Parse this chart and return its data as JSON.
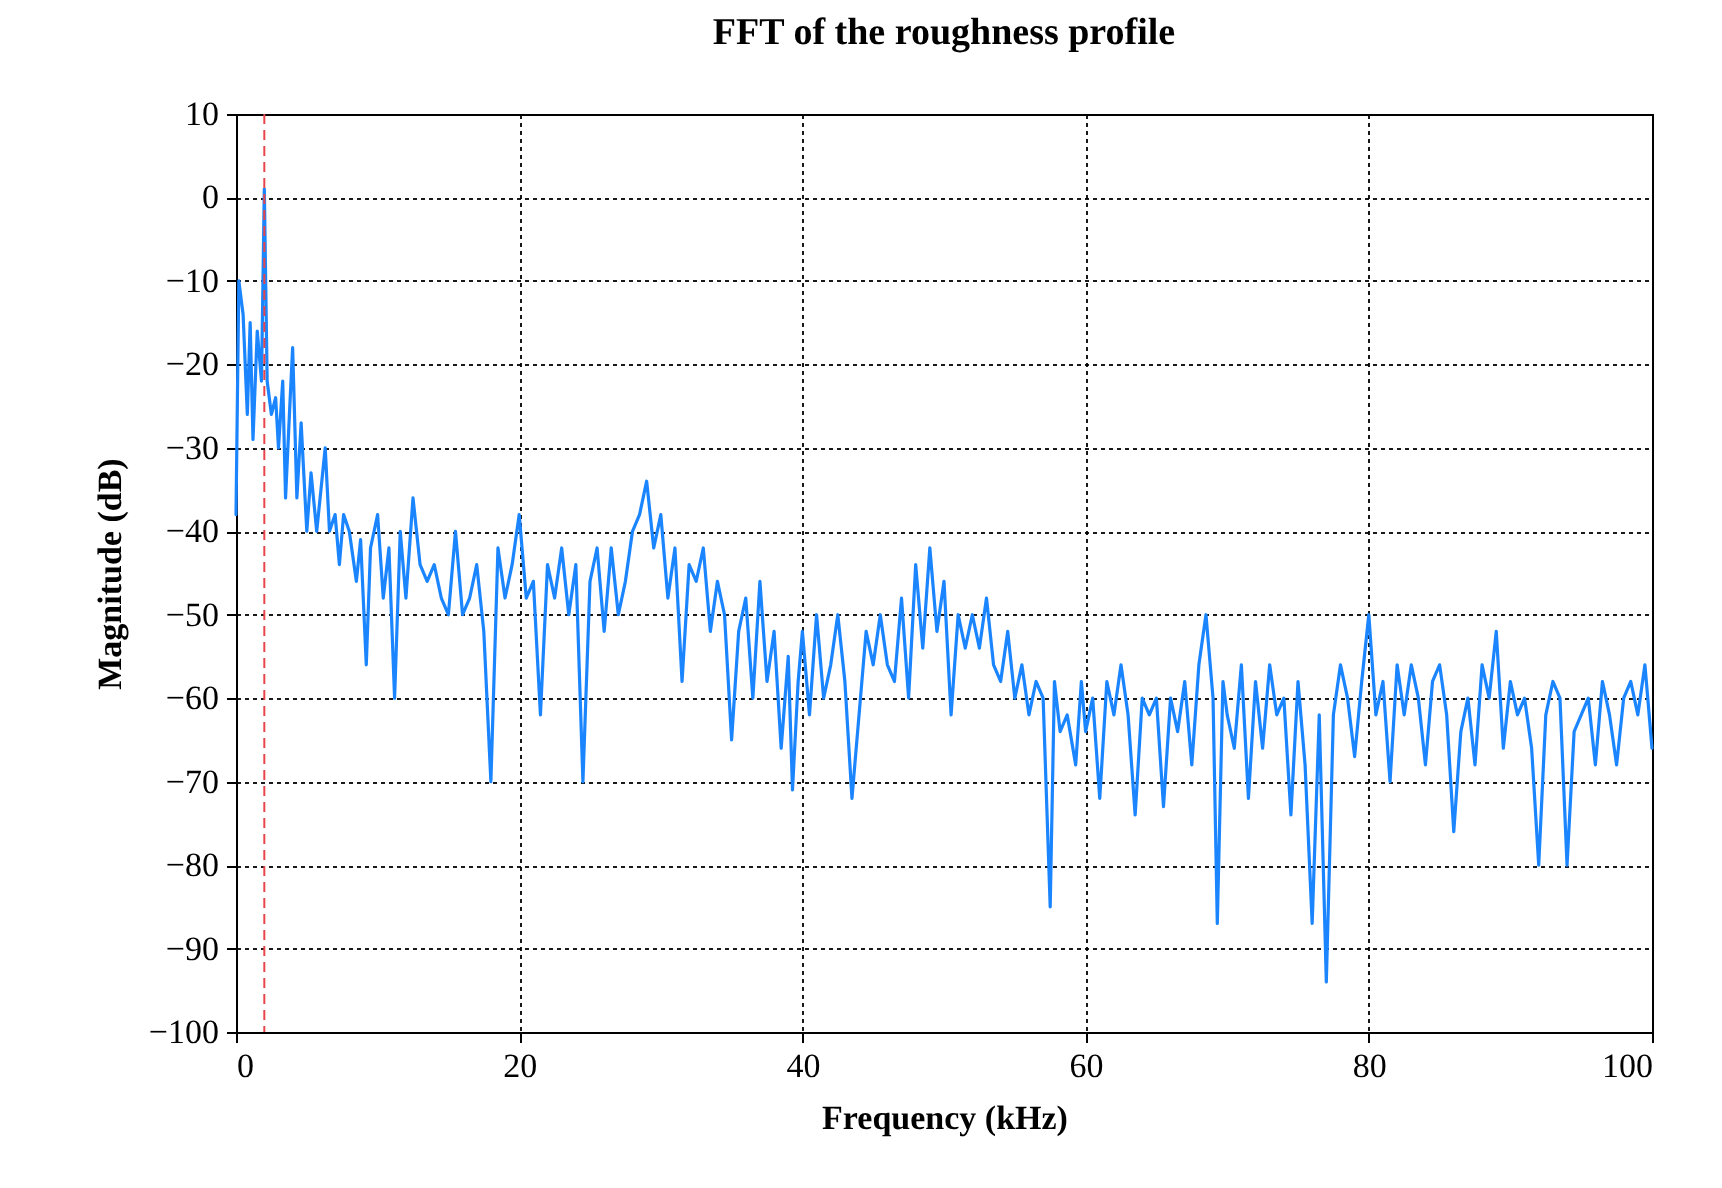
{
  "chart_data": {
    "type": "line",
    "title": "FFT of the roughness profile",
    "xlabel": "Frequency (kHz)",
    "ylabel": "Magnitude (dB)",
    "xlim": [
      0,
      100
    ],
    "xticks": [
      0,
      20,
      40,
      60,
      80,
      100
    ],
    "ylim": [
      -100,
      10
    ],
    "yticks": [
      -100,
      -90,
      -80,
      -70,
      -60,
      -50,
      -40,
      -30,
      -20,
      -10,
      0,
      10
    ],
    "grid": true,
    "line_style": "solid",
    "marker": "none",
    "ref_lines": [
      {
        "axis": "x",
        "value": 2,
        "color": "#e8454a",
        "line_style": "dashed"
      }
    ],
    "series": [
      {
        "color": "#1a85ff",
        "x": [
          0,
          0.2,
          0.5,
          0.8,
          1.0,
          1.2,
          1.5,
          1.8,
          2.0,
          2.2,
          2.5,
          2.8,
          3.0,
          3.3,
          3.5,
          3.8,
          4.0,
          4.3,
          4.6,
          5.0,
          5.3,
          5.7,
          6.0,
          6.3,
          6.6,
          7.0,
          7.3,
          7.6,
          8.0,
          8.5,
          8.8,
          9.2,
          9.5,
          10.0,
          10.4,
          10.8,
          11.2,
          11.6,
          12.0,
          12.5,
          13.0,
          13.5,
          14.0,
          14.5,
          15.0,
          15.5,
          16.0,
          16.5,
          17.0,
          17.5,
          18.0,
          18.5,
          19.0,
          19.5,
          20.0,
          20.5,
          21.0,
          21.5,
          22.0,
          22.5,
          23.0,
          23.5,
          24.0,
          24.5,
          25.0,
          25.5,
          26.0,
          26.5,
          27.0,
          27.5,
          28.0,
          28.5,
          29.0,
          29.5,
          30.0,
          30.5,
          31.0,
          31.5,
          32.0,
          32.5,
          33.0,
          33.5,
          34.0,
          34.5,
          35.0,
          35.5,
          36.0,
          36.5,
          37.0,
          37.5,
          38.0,
          38.5,
          39.0,
          39.3,
          39.7,
          40.0,
          40.5,
          41.0,
          41.5,
          42.0,
          42.5,
          43.0,
          43.5,
          44.0,
          44.5,
          45.0,
          45.5,
          46.0,
          46.5,
          47.0,
          47.5,
          48.0,
          48.5,
          49.0,
          49.5,
          50.0,
          50.5,
          51.0,
          51.5,
          52.0,
          52.5,
          53.0,
          53.5,
          54.0,
          54.5,
          55.0,
          55.5,
          56.0,
          56.5,
          57.0,
          57.5,
          57.8,
          58.2,
          58.7,
          59.3,
          59.7,
          60.0,
          60.5,
          61.0,
          61.5,
          62.0,
          62.5,
          63.0,
          63.5,
          64.0,
          64.5,
          65.0,
          65.5,
          66.0,
          66.5,
          67.0,
          67.5,
          68.0,
          68.5,
          69.0,
          69.3,
          69.7,
          70.0,
          70.5,
          71.0,
          71.5,
          72.0,
          72.5,
          73.0,
          73.5,
          74.0,
          74.5,
          75.0,
          75.5,
          76.0,
          76.5,
          77.0,
          77.5,
          78.0,
          78.5,
          79.0,
          79.5,
          80.0,
          80.5,
          81.0,
          81.5,
          82.0,
          82.5,
          83.0,
          83.5,
          84.0,
          84.5,
          85.0,
          85.5,
          86.0,
          86.5,
          87.0,
          87.5,
          88.0,
          88.5,
          89.0,
          89.5,
          90.0,
          90.5,
          91.0,
          91.5,
          92.0,
          92.5,
          93.0,
          93.5,
          94.0,
          94.5,
          95.0,
          95.5,
          96.0,
          96.5,
          97.0,
          97.5,
          98.0,
          98.5,
          99.0,
          99.5,
          100.0
        ],
        "values": [
          -38,
          -10,
          -14,
          -26,
          -15,
          -29,
          -16,
          -22,
          1,
          -22,
          -26,
          -24,
          -30,
          -22,
          -36,
          -25,
          -18,
          -36,
          -27,
          -40,
          -33,
          -40,
          -35,
          -30,
          -40,
          -38,
          -44,
          -38,
          -40,
          -46,
          -41,
          -56,
          -42,
          -38,
          -48,
          -42,
          -60,
          -40,
          -48,
          -36,
          -44,
          -46,
          -44,
          -48,
          -50,
          -40,
          -50,
          -48,
          -44,
          -52,
          -70,
          -42,
          -48,
          -44,
          -38,
          -48,
          -46,
          -62,
          -44,
          -48,
          -42,
          -50,
          -44,
          -70,
          -46,
          -42,
          -52,
          -42,
          -50,
          -46,
          -40,
          -38,
          -34,
          -42,
          -38,
          -48,
          -42,
          -58,
          -44,
          -46,
          -42,
          -52,
          -46,
          -50,
          -65,
          -52,
          -48,
          -60,
          -46,
          -58,
          -52,
          -66,
          -55,
          -71,
          -58,
          -52,
          -62,
          -50,
          -60,
          -56,
          -50,
          -58,
          -72,
          -62,
          -52,
          -56,
          -50,
          -56,
          -58,
          -48,
          -60,
          -44,
          -54,
          -42,
          -52,
          -46,
          -62,
          -50,
          -54,
          -50,
          -54,
          -48,
          -56,
          -58,
          -52,
          -60,
          -56,
          -62,
          -58,
          -60,
          -85,
          -58,
          -64,
          -62,
          -68,
          -58,
          -64,
          -60,
          -72,
          -58,
          -62,
          -56,
          -62,
          -74,
          -60,
          -62,
          -60,
          -73,
          -60,
          -64,
          -58,
          -68,
          -56,
          -50,
          -60,
          -87,
          -58,
          -62,
          -66,
          -56,
          -72,
          -58,
          -66,
          -56,
          -62,
          -60,
          -74,
          -58,
          -68,
          -87,
          -62,
          -94,
          -62,
          -56,
          -60,
          -67,
          -58,
          -50,
          -62,
          -58,
          -70,
          -56,
          -62,
          -56,
          -60,
          -68,
          -58,
          -56,
          -62,
          -76,
          -64,
          -60,
          -68,
          -56,
          -60,
          -52,
          -66,
          -58,
          -62,
          -60,
          -66,
          -80,
          -62,
          -58,
          -60,
          -80,
          -64,
          -62,
          -60,
          -68,
          -58,
          -62,
          -68,
          -60,
          -58,
          -62,
          -56,
          -66
        ]
      }
    ]
  }
}
